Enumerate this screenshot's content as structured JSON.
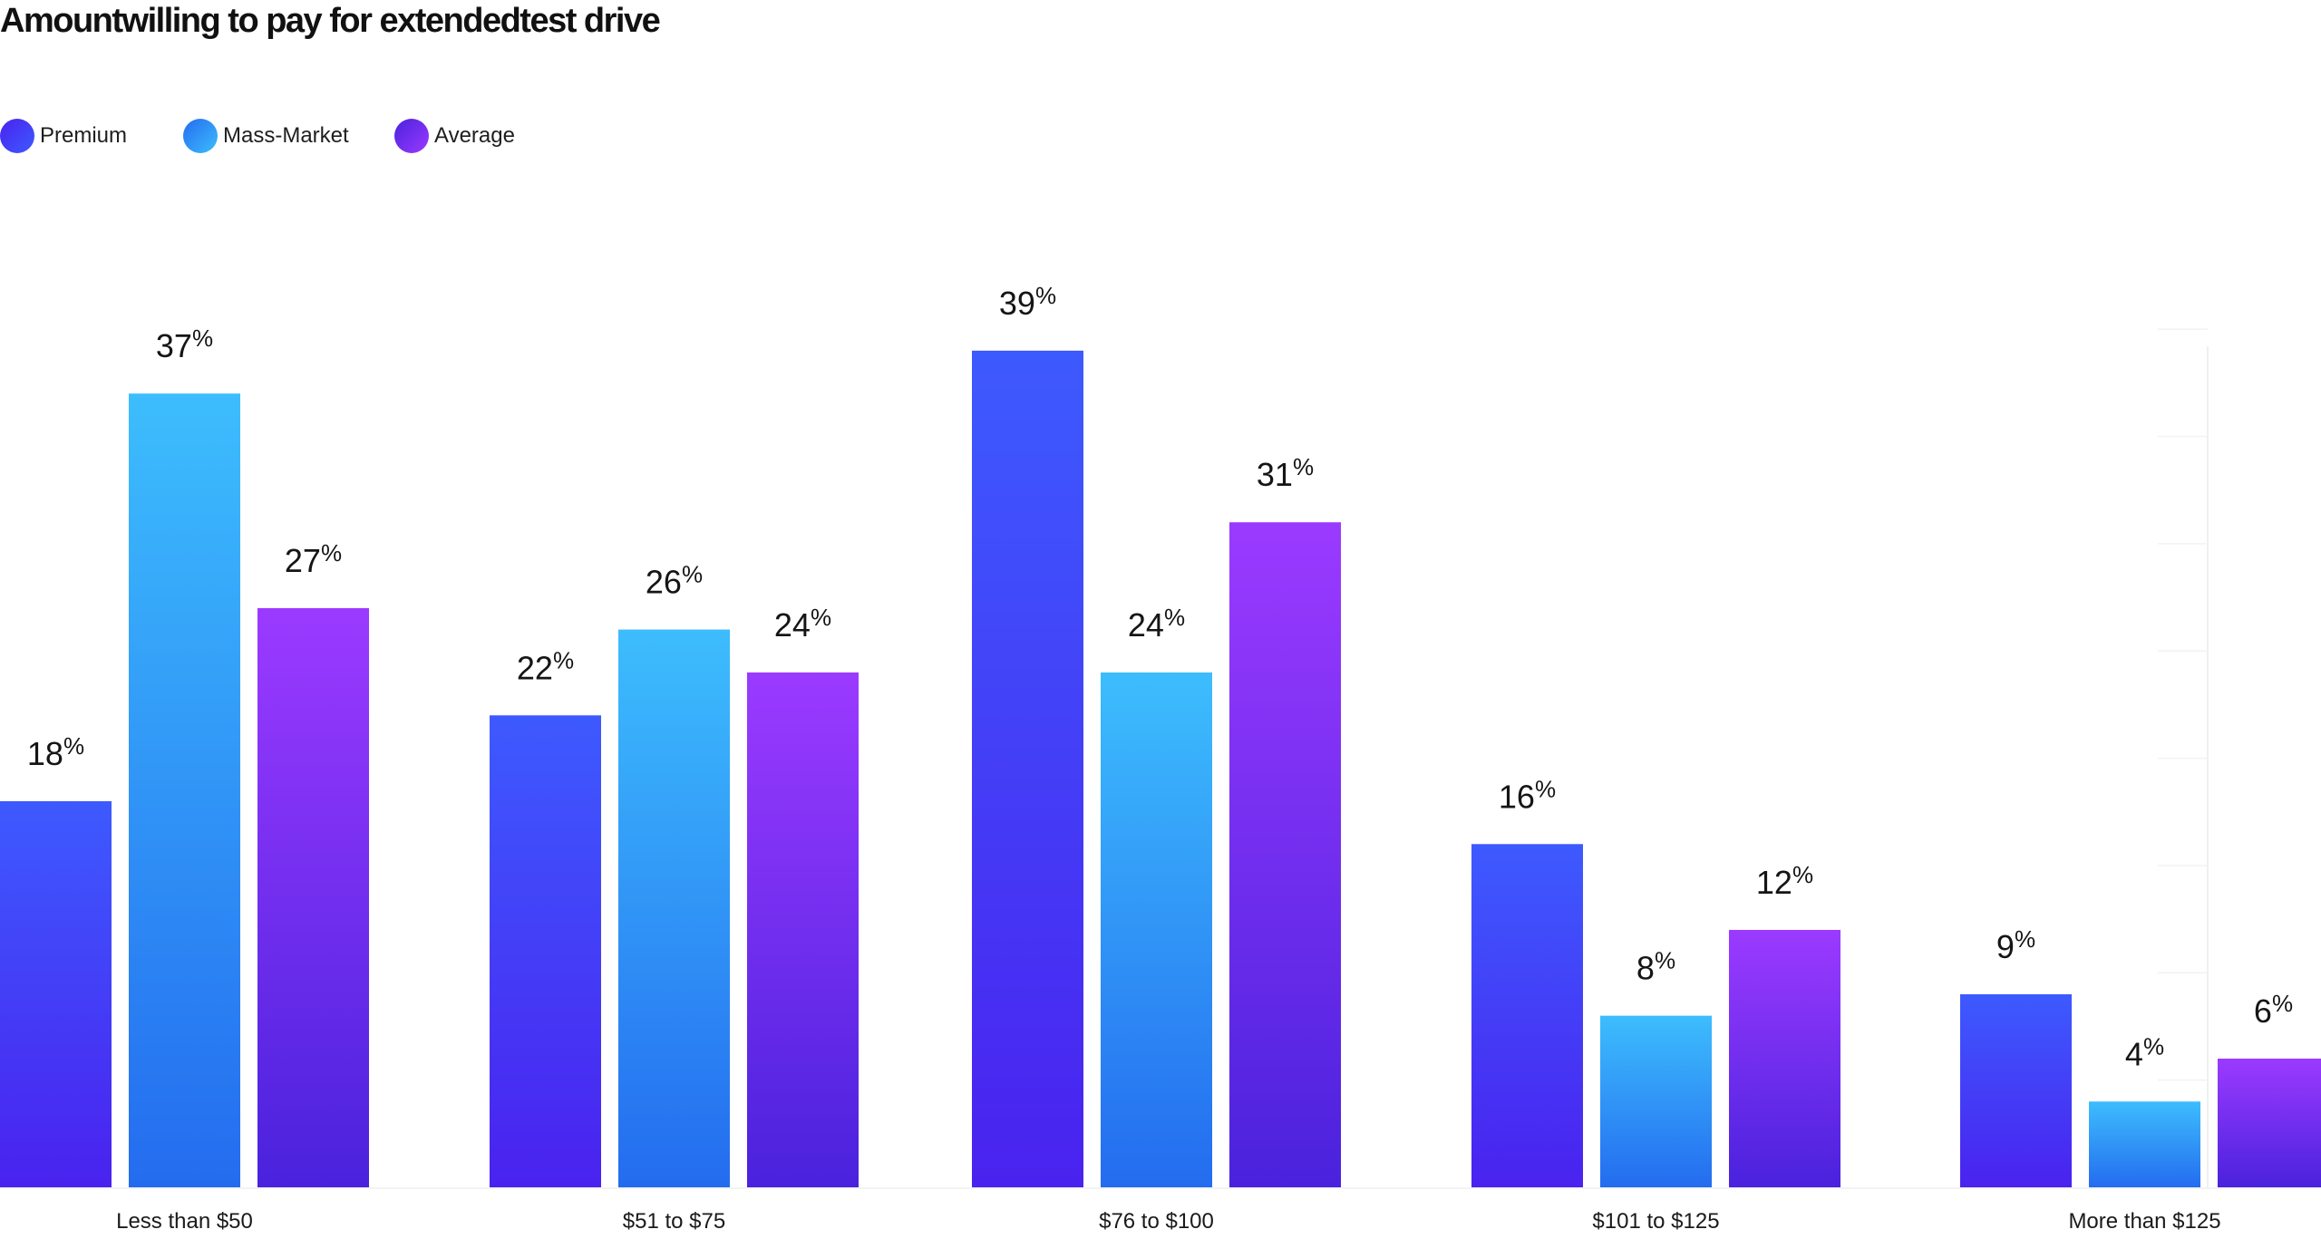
{
  "colors": {
    "premium": {
      "top": "#3d5afe",
      "bottom": "#4a22ef"
    },
    "mass_market": {
      "top": "#3dbdfd",
      "bottom": "#246cef"
    },
    "average": {
      "top": "#9b3aff",
      "bottom": "#4a22dd"
    }
  },
  "chart_data": {
    "type": "bar",
    "title": "Amountwilling to pay for extendedtest drive",
    "xlabel": "",
    "ylabel": "",
    "ylim": [
      0,
      40
    ],
    "grid": false,
    "legend_position": "top-left",
    "categories": [
      "Less than $50",
      "$51 to $75",
      "$76 to $100",
      "$101 to $125",
      "More than $125"
    ],
    "series": [
      {
        "name": "Premium",
        "color_key": "premium",
        "values": [
          18,
          22,
          39,
          16,
          9
        ]
      },
      {
        "name": "Mass-Market",
        "color_key": "mass_market",
        "values": [
          37,
          26,
          24,
          8,
          4
        ]
      },
      {
        "name": "Average",
        "color_key": "average",
        "values": [
          27,
          24,
          31,
          12,
          6
        ]
      }
    ],
    "value_suffix": "%"
  }
}
